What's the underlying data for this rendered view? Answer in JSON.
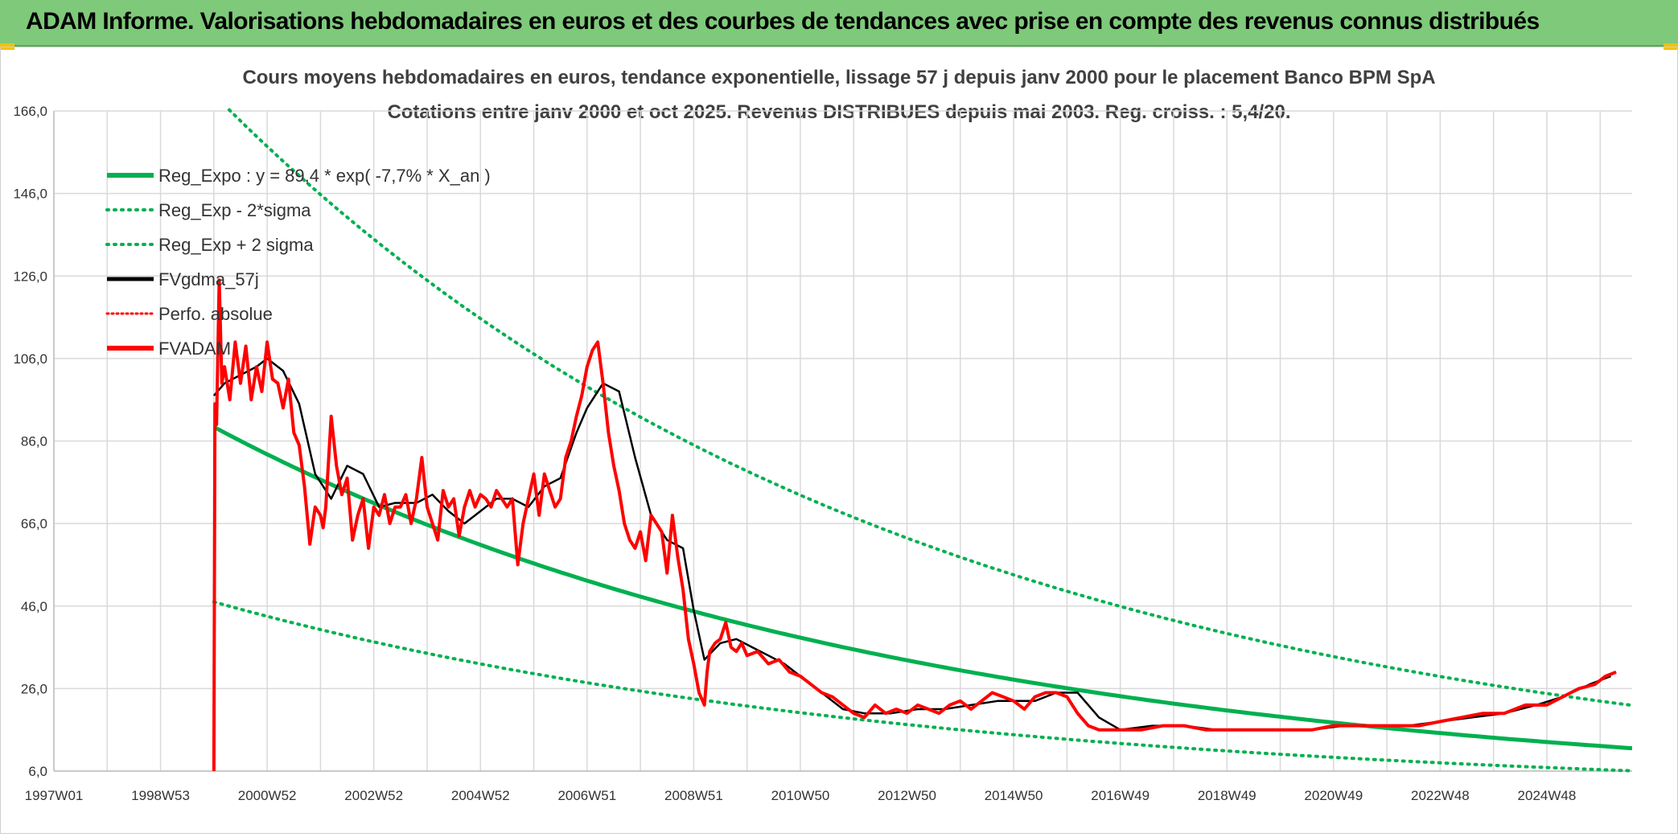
{
  "header": {
    "title": "ADAM Informe. Valorisations hebdomadaires en euros et des courbes de tendances avec prise en compte des revenus connus distribués"
  },
  "colors": {
    "trend": "#00b050",
    "smooth": "#000000",
    "price": "#ff0000",
    "header_bg": "#7ec97a"
  },
  "chart_data": {
    "type": "line",
    "title": "Cours moyens hebdomadaires en euros, tendance exponentielle, lissage 57 j depuis janv 2000 pour le placement Banco BPM SpA",
    "subtitle": "Cotations entre janv 2000 et oct 2025. Revenus DISTRIBUES depuis mai 2003. Reg. croiss. : 5,4/20.",
    "xlabel": "",
    "ylabel": "",
    "x_range": [
      1997.0,
      2026.6
    ],
    "ylim": [
      6,
      166
    ],
    "y_ticks": [
      "6,0",
      "26,0",
      "46,0",
      "66,0",
      "86,0",
      "106,0",
      "126,0",
      "146,0",
      "166,0"
    ],
    "y_tick_values": [
      6,
      26,
      46,
      66,
      86,
      106,
      126,
      146,
      166
    ],
    "x_tick_labels": [
      "1997W01",
      "1998W53",
      "2000W52",
      "2002W52",
      "2004W52",
      "2006W51",
      "2008W51",
      "2010W50",
      "2012W50",
      "2014W50",
      "2016W49",
      "2018W49",
      "2020W49",
      "2022W48",
      "2024W48"
    ],
    "x_tick_values": [
      1997.0,
      1999.0,
      2001.0,
      2003.0,
      2005.0,
      2007.0,
      2009.0,
      2011.0,
      2013.0,
      2015.0,
      2017.0,
      2019.0,
      2021.0,
      2023.0,
      2025.0
    ],
    "grid": true,
    "legend_position": "top-left",
    "trend": {
      "a": 89.4,
      "rate": -0.077,
      "x0": 2000.0,
      "x_end": 2026.6
    },
    "bands": [
      {
        "name": "Reg_Exp - 2*sigma",
        "a": 47.0,
        "rate": -0.077
      },
      {
        "name": "Reg_Exp + 2 sigma",
        "a": 170.0,
        "rate": -0.077
      }
    ],
    "series": [
      {
        "name": "Reg_Expo : y = 89,4 * exp( -7,7% *  X_an )",
        "style": "trend"
      },
      {
        "name": "Reg_Exp - 2*sigma",
        "style": "band"
      },
      {
        "name": "Reg_Exp + 2 sigma",
        "style": "band"
      },
      {
        "name": "FVgdma_57j",
        "style": "smooth",
        "x": [
          2000.0,
          2000.2,
          2000.5,
          2000.8,
          2001.0,
          2001.3,
          2001.6,
          2001.9,
          2002.2,
          2002.5,
          2002.8,
          2003.1,
          2003.4,
          2003.8,
          2004.1,
          2004.4,
          2004.7,
          2005.0,
          2005.3,
          2005.6,
          2005.9,
          2006.2,
          2006.5,
          2006.8,
          2007.0,
          2007.3,
          2007.6,
          2007.9,
          2008.2,
          2008.5,
          2008.8,
          2009.0,
          2009.2,
          2009.5,
          2009.8,
          2010.1,
          2010.4,
          2010.7,
          2011.0,
          2011.4,
          2011.8,
          2012.2,
          2012.7,
          2013.2,
          2013.7,
          2014.2,
          2014.7,
          2015.0,
          2015.4,
          2015.8,
          2016.2,
          2016.6,
          2017.0,
          2017.6,
          2018.2,
          2018.8,
          2019.4,
          2020.0,
          2020.6,
          2021.2,
          2021.8,
          2022.4,
          2023.0,
          2023.6,
          2024.2,
          2024.8,
          2025.3,
          2025.8,
          2026.2
        ],
        "values": [
          97,
          100,
          102,
          104,
          106,
          103,
          95,
          78,
          72,
          80,
          78,
          70,
          71,
          71,
          73,
          69,
          66,
          69,
          72,
          72,
          70,
          75,
          77,
          88,
          94,
          100,
          98,
          82,
          68,
          62,
          60,
          45,
          33,
          37,
          38,
          36,
          34,
          32,
          29,
          25,
          21,
          20,
          20,
          21,
          21,
          22,
          23,
          23,
          23,
          25,
          25,
          19,
          16,
          17,
          17,
          16,
          16,
          16,
          16,
          17,
          17,
          17,
          18,
          19,
          20,
          22,
          24,
          27,
          29
        ]
      },
      {
        "name": "Perfo. absolue",
        "style": "dotted"
      },
      {
        "name": "FVADAM",
        "style": "price",
        "x": [
          2000.0,
          2000.02,
          2000.05,
          2000.1,
          2000.15,
          2000.2,
          2000.3,
          2000.4,
          2000.5,
          2000.6,
          2000.7,
          2000.8,
          2000.9,
          2001.0,
          2001.1,
          2001.2,
          2001.3,
          2001.4,
          2001.5,
          2001.6,
          2001.7,
          2001.8,
          2001.9,
          2002.0,
          2002.05,
          2002.1,
          2002.2,
          2002.3,
          2002.4,
          2002.5,
          2002.6,
          2002.7,
          2002.8,
          2002.9,
          2003.0,
          2003.1,
          2003.2,
          2003.3,
          2003.4,
          2003.5,
          2003.6,
          2003.7,
          2003.8,
          2003.9,
          2004.0,
          2004.1,
          2004.2,
          2004.3,
          2004.4,
          2004.5,
          2004.6,
          2004.7,
          2004.8,
          2004.9,
          2005.0,
          2005.1,
          2005.2,
          2005.3,
          2005.4,
          2005.5,
          2005.6,
          2005.7,
          2005.8,
          2005.9,
          2006.0,
          2006.1,
          2006.2,
          2006.3,
          2006.4,
          2006.5,
          2006.6,
          2006.7,
          2006.8,
          2006.9,
          2007.0,
          2007.1,
          2007.2,
          2007.3,
          2007.4,
          2007.5,
          2007.6,
          2007.7,
          2007.8,
          2007.9,
          2008.0,
          2008.1,
          2008.2,
          2008.3,
          2008.4,
          2008.5,
          2008.6,
          2008.7,
          2008.8,
          2008.9,
          2009.0,
          2009.1,
          2009.2,
          2009.25,
          2009.3,
          2009.4,
          2009.5,
          2009.6,
          2009.7,
          2009.8,
          2009.9,
          2010.0,
          2010.2,
          2010.4,
          2010.6,
          2010.8,
          2011.0,
          2011.2,
          2011.4,
          2011.6,
          2011.8,
          2012.0,
          2012.2,
          2012.4,
          2012.6,
          2012.8,
          2013.0,
          2013.2,
          2013.4,
          2013.6,
          2013.8,
          2014.0,
          2014.2,
          2014.4,
          2014.6,
          2014.8,
          2015.0,
          2015.2,
          2015.4,
          2015.6,
          2015.8,
          2016.0,
          2016.2,
          2016.4,
          2016.6,
          2016.8,
          2017.0,
          2017.4,
          2017.8,
          2018.2,
          2018.6,
          2019.0,
          2019.4,
          2019.8,
          2020.2,
          2020.6,
          2021.0,
          2021.4,
          2021.8,
          2022.2,
          2022.6,
          2023.0,
          2023.4,
          2023.8,
          2024.2,
          2024.6,
          2025.0,
          2025.3,
          2025.6,
          2025.9,
          2026.1,
          2026.3
        ],
        "values": [
          6,
          95,
          90,
          125,
          100,
          104,
          96,
          110,
          100,
          109,
          96,
          104,
          98,
          110,
          101,
          100,
          94,
          101,
          88,
          85,
          75,
          61,
          70,
          68,
          65,
          70,
          92,
          80,
          73,
          77,
          62,
          68,
          72,
          60,
          70,
          68,
          73,
          66,
          70,
          70,
          73,
          66,
          72,
          82,
          70,
          66,
          62,
          74,
          70,
          72,
          63,
          70,
          74,
          70,
          73,
          72,
          70,
          74,
          72,
          70,
          72,
          56,
          66,
          72,
          78,
          68,
          78,
          74,
          70,
          72,
          82,
          86,
          92,
          97,
          104,
          108,
          110,
          100,
          88,
          80,
          74,
          66,
          62,
          60,
          64,
          57,
          68,
          66,
          64,
          54,
          68,
          58,
          50,
          38,
          32,
          25,
          22,
          30,
          35,
          37,
          38,
          42,
          36,
          35,
          37,
          34,
          35,
          32,
          33,
          30,
          29,
          27,
          25,
          24,
          22,
          20,
          19,
          22,
          20,
          21,
          20,
          22,
          21,
          20,
          22,
          23,
          21,
          23,
          25,
          24,
          23,
          21,
          24,
          25,
          25,
          24,
          20,
          17,
          16,
          16,
          16,
          16,
          17,
          17,
          16,
          16,
          16,
          16,
          16,
          16,
          17,
          17,
          17,
          17,
          17,
          18,
          19,
          20,
          20,
          22,
          22,
          24,
          26,
          27,
          29,
          30
        ]
      }
    ]
  }
}
